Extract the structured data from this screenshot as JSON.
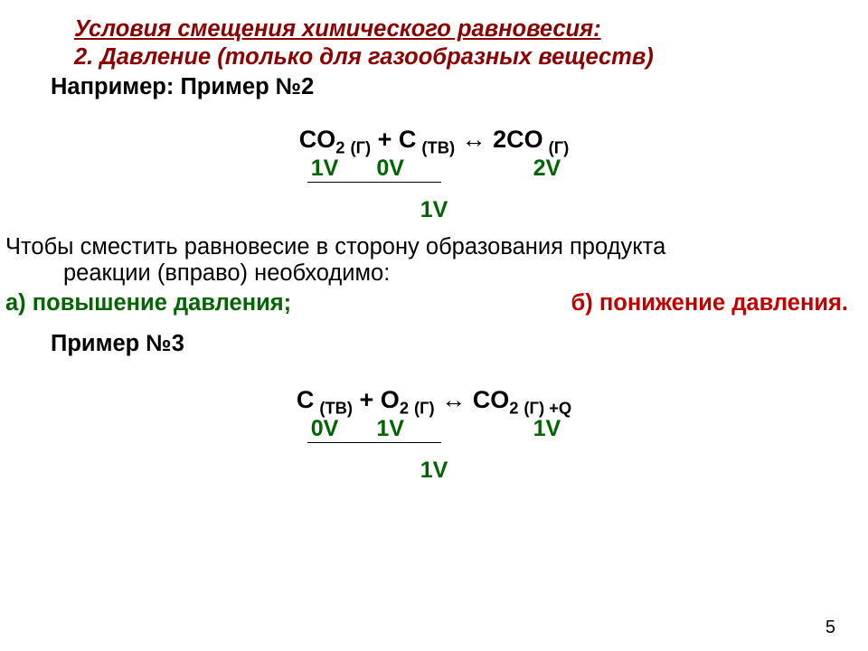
{
  "colors": {
    "title_color": "#8b0000",
    "volume_color": "#006400",
    "increase_color": "#006400",
    "decrease_color": "#c00000",
    "text_color": "#000000",
    "bg": "#ffffff"
  },
  "fonts": {
    "body_size_pt": 19,
    "equation_size_pt": 20,
    "family": "Arial"
  },
  "title": "Условия смещения химического равновесия:",
  "subtitle": "2. Давление (только для газообразных веществ)",
  "example2": {
    "label": "Например: Пример №2",
    "equation": {
      "terms": [
        {
          "formula": "CO",
          "sub": "2",
          "state": "(Г)"
        },
        {
          "op": "+"
        },
        {
          "formula": "C",
          "state": "(ТВ)"
        },
        {
          "op": "↔"
        },
        {
          "coef": "2",
          "formula": "CO",
          "state": "(Г)"
        }
      ]
    },
    "volumes": {
      "left": [
        "1V",
        "0V"
      ],
      "right": "2V",
      "sum": "1V"
    }
  },
  "paragraph": {
    "line1": "Чтобы сместить равновесие в сторону образования продукта",
    "line2": "реакции (вправо) необходимо:"
  },
  "answers": {
    "a_label": "а) повышение давления;",
    "b_label": "б) понижение давления."
  },
  "example3": {
    "label": "Пример №3",
    "equation": {
      "terms": [
        {
          "formula": "C",
          "state": "(ТВ)"
        },
        {
          "op": "+"
        },
        {
          "formula": "O",
          "sub": "2",
          "state": "(Г)"
        },
        {
          "op": "↔"
        },
        {
          "formula": "CO",
          "sub": "2",
          "state": "(Г)",
          "extra": " +Q"
        }
      ]
    },
    "volumes": {
      "left": [
        "0V",
        "1V"
      ],
      "right": "1V",
      "sum": "1V"
    }
  },
  "page_number": "5"
}
